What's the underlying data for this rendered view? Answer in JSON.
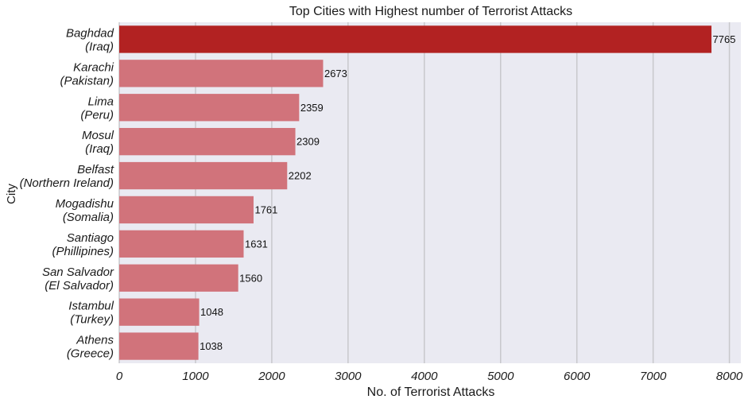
{
  "chart_data": {
    "type": "bar",
    "orientation": "horizontal",
    "title": "Top Cities with Highest number of Terrorist Attacks",
    "xlabel": "No. of Terrorist Attacks",
    "ylabel": "City",
    "xlim": [
      0,
      8150
    ],
    "xticks": [
      0,
      1000,
      2000,
      3000,
      4000,
      5000,
      6000,
      7000,
      8000
    ],
    "grid": "vertical",
    "categories": [
      [
        "Baghdad",
        "(Iraq)"
      ],
      [
        "Karachi",
        "(Pakistan)"
      ],
      [
        "Lima",
        "(Peru)"
      ],
      [
        "Mosul",
        "(Iraq)"
      ],
      [
        "Belfast",
        "(Northern Ireland)"
      ],
      [
        "Mogadishu",
        "(Somalia)"
      ],
      [
        "Santiago",
        "(Phillipines)"
      ],
      [
        "San Salvador",
        "(El Salvador)"
      ],
      [
        "Istambul",
        "(Turkey)"
      ],
      [
        "Athens",
        "(Greece)"
      ]
    ],
    "values": [
      7765,
      2673,
      2359,
      2309,
      2202,
      1761,
      1631,
      1560,
      1048,
      1038
    ],
    "colors": {
      "highlight": "#b22222",
      "bar": "#d1737b",
      "background": "#eaeaf2",
      "grid": "#c8c8cc"
    }
  }
}
